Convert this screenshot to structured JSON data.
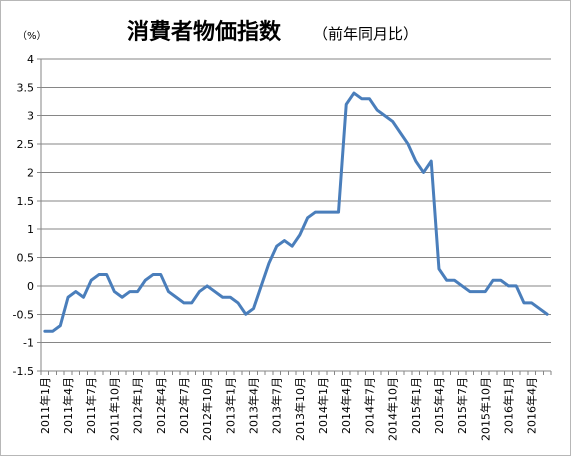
{
  "chart_data": {
    "type": "line",
    "title": "消費者物価指数",
    "subtitle": "（前年同月比）",
    "ylabel": "（%）",
    "ylim": [
      -1.5,
      4
    ],
    "yticks": [
      "4",
      "3.5",
      "3",
      "2.5",
      "2",
      "1.5",
      "1",
      "0.5",
      "0",
      "-0.5",
      "-1",
      "-1.5"
    ],
    "ytick_values": [
      4,
      3.5,
      3,
      2.5,
      2,
      1.5,
      1,
      0.5,
      0,
      -0.5,
      -1,
      -1.5
    ],
    "grid": "horizontal",
    "x_tick_labels": [
      "2011年1月",
      "2011年4月",
      "2011年7月",
      "2011年10月",
      "2012年1月",
      "2012年4月",
      "2012年7月",
      "2012年10月",
      "2013年1月",
      "2013年4月",
      "2013年7月",
      "2013年10月",
      "2014年1月",
      "2014年4月",
      "2014年7月",
      "2014年10月",
      "2015年1月",
      "2015年4月",
      "2015年7月",
      "2015年10月",
      "2016年1月",
      "2016年4月"
    ],
    "series": [
      {
        "color": "#4a7ebb",
        "x_start": "2011年1月",
        "values": [
          -0.8,
          -0.8,
          -0.7,
          -0.2,
          -0.1,
          -0.2,
          0.1,
          0.2,
          0.2,
          -0.1,
          -0.2,
          -0.1,
          -0.1,
          0.1,
          0.2,
          0.2,
          -0.1,
          -0.2,
          -0.3,
          -0.3,
          -0.1,
          0.0,
          -0.1,
          -0.2,
          -0.2,
          -0.3,
          -0.5,
          -0.4,
          0.0,
          0.4,
          0.7,
          0.8,
          0.7,
          0.9,
          1.2,
          1.3,
          1.3,
          1.3,
          1.3,
          3.2,
          3.4,
          3.3,
          3.3,
          3.1,
          3.0,
          2.9,
          2.7,
          2.5,
          2.2,
          2.0,
          2.2,
          0.3,
          0.1,
          0.1,
          0.0,
          -0.1,
          -0.1,
          -0.1,
          0.1,
          0.1,
          0.0,
          0.0,
          -0.3,
          -0.3,
          -0.4,
          -0.5
        ]
      }
    ]
  }
}
